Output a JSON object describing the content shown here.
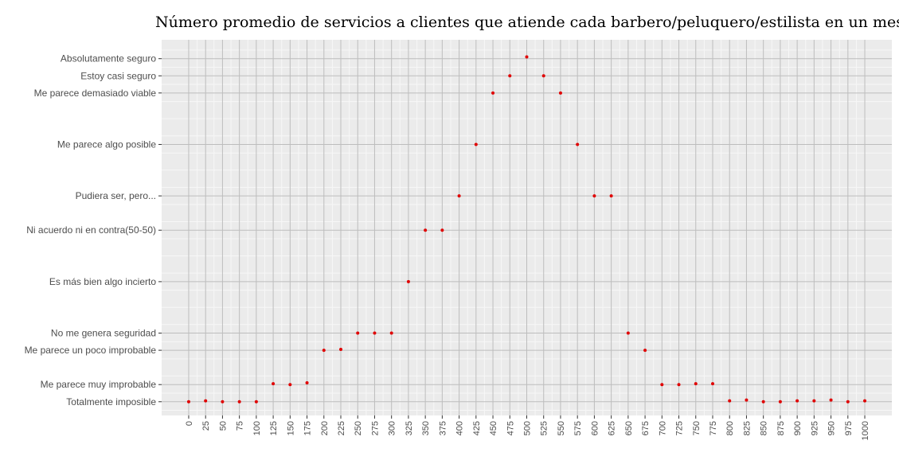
{
  "chart_data": {
    "type": "scatter",
    "title": "Número promedio de servicios a clientes que atiende cada barbero/peluquero/estilista en un mes",
    "xlabel": "",
    "ylabel": "",
    "x_ticks": [
      0,
      25,
      50,
      75,
      100,
      125,
      150,
      175,
      200,
      225,
      250,
      275,
      300,
      325,
      350,
      375,
      400,
      425,
      450,
      475,
      500,
      525,
      550,
      575,
      600,
      625,
      650,
      675,
      700,
      725,
      750,
      775,
      800,
      825,
      850,
      875,
      900,
      925,
      950,
      975,
      1000
    ],
    "y_categories": [
      {
        "label": "Totalmente imposible",
        "level": 0.0
      },
      {
        "label": "Me parece muy improbable",
        "level": 1.0
      },
      {
        "label": "Me parece un poco improbable",
        "level": 3.0
      },
      {
        "label": "No me genera seguridad",
        "level": 4.0
      },
      {
        "label": "Es más bien algo incierto",
        "level": 7.0
      },
      {
        "label": "Ni acuerdo ni en contra(50-50)",
        "level": 10.0
      },
      {
        "label": "Pudiera ser, pero...",
        "level": 12.0
      },
      {
        "label": "Me parece algo posible",
        "level": 15.0
      },
      {
        "label": "Me parece demasiado viable",
        "level": 18.0
      },
      {
        "label": "Estoy casi seguro",
        "level": 19.0
      },
      {
        "label": "Absolutamente seguro",
        "level": 20.0
      }
    ],
    "ylim": [
      -0.8,
      21.1
    ],
    "xlim": [
      -40,
      1040
    ],
    "grid": true,
    "colors": {
      "point": "#e00000",
      "panel": "#ebebeb",
      "grid_major": "#bdbdbd",
      "grid_minor": "#f7f7f7"
    },
    "points": [
      {
        "x": 0,
        "y": 0.0
      },
      {
        "x": 25,
        "y": 0.05
      },
      {
        "x": 50,
        "y": 0.0
      },
      {
        "x": 75,
        "y": 0.0
      },
      {
        "x": 100,
        "y": 0.0
      },
      {
        "x": 125,
        "y": 1.05
      },
      {
        "x": 150,
        "y": 1.0
      },
      {
        "x": 175,
        "y": 1.1
      },
      {
        "x": 200,
        "y": 3.0
      },
      {
        "x": 225,
        "y": 3.05
      },
      {
        "x": 250,
        "y": 4.0
      },
      {
        "x": 275,
        "y": 4.0
      },
      {
        "x": 300,
        "y": 4.0
      },
      {
        "x": 325,
        "y": 7.0
      },
      {
        "x": 350,
        "y": 10.0
      },
      {
        "x": 375,
        "y": 10.0
      },
      {
        "x": 400,
        "y": 12.0
      },
      {
        "x": 425,
        "y": 15.0
      },
      {
        "x": 450,
        "y": 18.0
      },
      {
        "x": 475,
        "y": 19.0
      },
      {
        "x": 500,
        "y": 20.1
      },
      {
        "x": 525,
        "y": 19.0
      },
      {
        "x": 550,
        "y": 18.0
      },
      {
        "x": 575,
        "y": 15.0
      },
      {
        "x": 600,
        "y": 12.0
      },
      {
        "x": 625,
        "y": 12.0
      },
      {
        "x": 650,
        "y": 4.0
      },
      {
        "x": 675,
        "y": 3.0
      },
      {
        "x": 700,
        "y": 1.0
      },
      {
        "x": 725,
        "y": 1.0
      },
      {
        "x": 750,
        "y": 1.05
      },
      {
        "x": 775,
        "y": 1.05
      },
      {
        "x": 800,
        "y": 0.05
      },
      {
        "x": 825,
        "y": 0.1
      },
      {
        "x": 850,
        "y": 0.0
      },
      {
        "x": 875,
        "y": 0.0
      },
      {
        "x": 900,
        "y": 0.05
      },
      {
        "x": 925,
        "y": 0.05
      },
      {
        "x": 950,
        "y": 0.1
      },
      {
        "x": 975,
        "y": 0.0
      },
      {
        "x": 1000,
        "y": 0.05
      }
    ]
  }
}
